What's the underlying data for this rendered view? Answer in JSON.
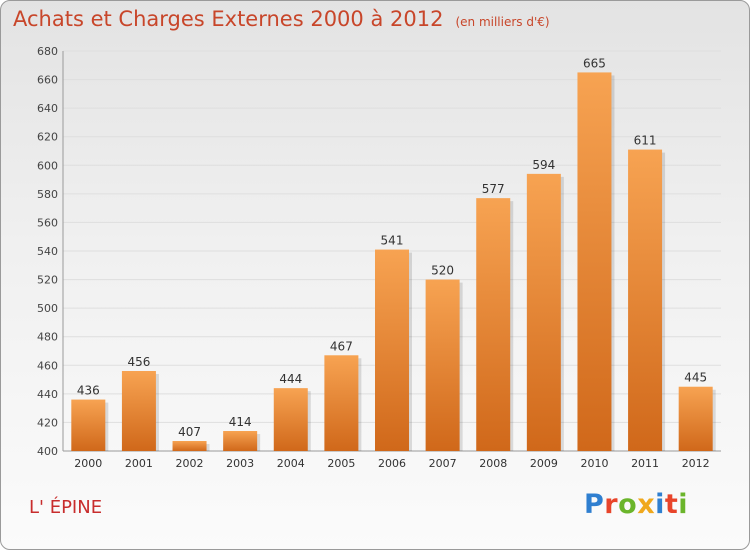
{
  "header": {
    "title": "Achats et Charges Externes 2000 à 2012",
    "unit": "(en milliers d'€)"
  },
  "footer": {
    "commune": "L' ÉPINE",
    "brand": {
      "letters": [
        "P",
        "r",
        "o",
        "x",
        "i",
        "t",
        "i"
      ],
      "colors": [
        "#2f7fd0",
        "#e8442a",
        "#6bb52b",
        "#f0a81c",
        "#2f7fd0",
        "#e8442a",
        "#6bb52b"
      ]
    }
  },
  "chart_data": {
    "type": "bar",
    "title": "Achats et Charges Externes 2000 à 2012",
    "subtitle": "(en milliers d'€)",
    "categories": [
      "2000",
      "2001",
      "2002",
      "2003",
      "2004",
      "2005",
      "2006",
      "2007",
      "2008",
      "2009",
      "2010",
      "2011",
      "2012"
    ],
    "values": [
      436,
      456,
      407,
      414,
      444,
      467,
      541,
      520,
      577,
      594,
      665,
      611,
      445
    ],
    "ylim": [
      400,
      680
    ],
    "yticks": [
      400,
      420,
      440,
      460,
      480,
      500,
      520,
      540,
      560,
      580,
      600,
      620,
      640,
      660,
      680
    ],
    "grid": true,
    "colors": {
      "bar": "#f0913a",
      "bar_light": "#f7a352",
      "bar_dark": "#d0681a"
    }
  }
}
